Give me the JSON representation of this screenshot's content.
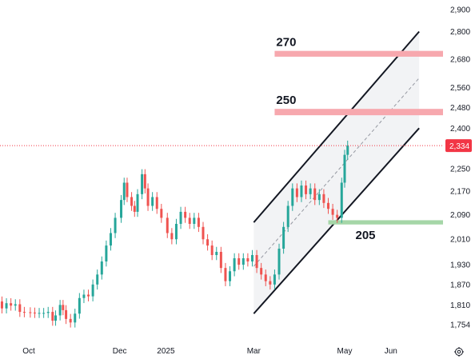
{
  "chart_data": {
    "type": "candlestick",
    "y_scale": "log",
    "ylim": [
      1700,
      2920
    ],
    "y_ticks": [
      "2,900",
      "2,800",
      "2,680",
      "2,560",
      "2,480",
      "2,400",
      "2,250",
      "2,170",
      "2,090",
      "2,010",
      "1,930",
      "1,870",
      "1,810",
      "1,754"
    ],
    "x_ticks": [
      "Oct",
      "Dec",
      "2025",
      "Mar",
      "May",
      "Jun"
    ],
    "current_price": "2,334",
    "colors": {
      "up": "#26a69a",
      "down": "#ef5350",
      "current_line": "#f23645",
      "resistance_zone": "#f7a8ae",
      "support_zone": "#a5d6a7",
      "channel": "#131722",
      "channel_fill": "#f2f3f5",
      "axis_text": "#131722",
      "current_label_bg": "#f23645"
    },
    "channel": {
      "lower": [
        [
          "2025-03-01",
          1785
        ],
        [
          "2025-06-20",
          2400
        ]
      ],
      "upper": [
        [
          "2025-03-01",
          2065
        ],
        [
          "2025-06-20",
          2800
        ]
      ],
      "middle": [
        [
          "2025-03-01",
          1925
        ],
        [
          "2025-06-20",
          2600
        ]
      ]
    },
    "zones": [
      {
        "label": "270",
        "kind": "resistance",
        "from": "2025-03-15",
        "low": 2690,
        "high": 2715
      },
      {
        "label": "250",
        "kind": "resistance",
        "from": "2025-03-15",
        "low": 2450,
        "high": 2475
      },
      {
        "label": "205",
        "kind": "support",
        "from": "2025-04-20",
        "low": 2058,
        "high": 2072
      }
    ],
    "candles": [
      {
        "t": "2024-09-10",
        "c": 1820
      },
      {
        "t": "2024-09-13",
        "c": 1800
      },
      {
        "t": "2024-09-16",
        "c": 1815
      },
      {
        "t": "2024-09-19",
        "c": 1808
      },
      {
        "t": "2024-09-22",
        "c": 1812
      },
      {
        "t": "2024-09-25",
        "c": 1790
      },
      {
        "t": "2024-09-28",
        "c": 1789
      },
      {
        "t": "2024-10-02",
        "c": 1788
      },
      {
        "t": "2024-10-05",
        "c": 1787
      },
      {
        "t": "2024-10-08",
        "c": 1787
      },
      {
        "t": "2024-10-11",
        "c": 1787
      },
      {
        "t": "2024-10-14",
        "c": 1790
      },
      {
        "t": "2024-10-17",
        "c": 1765
      },
      {
        "t": "2024-10-19",
        "c": 1780
      },
      {
        "t": "2024-10-22",
        "c": 1810
      },
      {
        "t": "2024-10-24",
        "c": 1795
      },
      {
        "t": "2024-10-26",
        "c": 1770
      },
      {
        "t": "2024-10-29",
        "c": 1760
      },
      {
        "t": "2024-11-01",
        "c": 1785
      },
      {
        "t": "2024-11-04",
        "c": 1830
      },
      {
        "t": "2024-11-07",
        "c": 1840
      },
      {
        "t": "2024-11-10",
        "c": 1835
      },
      {
        "t": "2024-11-13",
        "c": 1870
      },
      {
        "t": "2024-11-16",
        "c": 1900
      },
      {
        "t": "2024-11-19",
        "c": 1940
      },
      {
        "t": "2024-11-22",
        "c": 1990
      },
      {
        "t": "2024-11-25",
        "c": 2030
      },
      {
        "t": "2024-11-28",
        "c": 2080
      },
      {
        "t": "2024-12-02",
        "c": 2140
      },
      {
        "t": "2024-12-04",
        "c": 2200
      },
      {
        "t": "2024-12-06",
        "c": 2150
      },
      {
        "t": "2024-12-09",
        "c": 2120
      },
      {
        "t": "2024-12-11",
        "c": 2100
      },
      {
        "t": "2024-12-13",
        "c": 2160
      },
      {
        "t": "2024-12-16",
        "c": 2230
      },
      {
        "t": "2024-12-18",
        "c": 2180
      },
      {
        "t": "2024-12-20",
        "c": 2120
      },
      {
        "t": "2024-12-23",
        "c": 2150
      },
      {
        "t": "2024-12-26",
        "c": 2110
      },
      {
        "t": "2024-12-29",
        "c": 2080
      },
      {
        "t": "2025-01-02",
        "c": 2030
      },
      {
        "t": "2025-01-05",
        "c": 2010
      },
      {
        "t": "2025-01-08",
        "c": 2060
      },
      {
        "t": "2025-01-11",
        "c": 2100
      },
      {
        "t": "2025-01-14",
        "c": 2080
      },
      {
        "t": "2025-01-17",
        "c": 2060
      },
      {
        "t": "2025-01-20",
        "c": 2080
      },
      {
        "t": "2025-01-23",
        "c": 2050
      },
      {
        "t": "2025-01-26",
        "c": 2010
      },
      {
        "t": "2025-01-29",
        "c": 1990
      },
      {
        "t": "2025-02-01",
        "c": 1960
      },
      {
        "t": "2025-02-04",
        "c": 1970
      },
      {
        "t": "2025-02-07",
        "c": 1920
      },
      {
        "t": "2025-02-10",
        "c": 1880
      },
      {
        "t": "2025-02-13",
        "c": 1910
      },
      {
        "t": "2025-02-16",
        "c": 1950
      },
      {
        "t": "2025-02-19",
        "c": 1930
      },
      {
        "t": "2025-02-22",
        "c": 1950
      },
      {
        "t": "2025-02-25",
        "c": 1940
      },
      {
        "t": "2025-02-28",
        "c": 1960
      },
      {
        "t": "2025-03-03",
        "c": 1920
      },
      {
        "t": "2025-03-06",
        "c": 1900
      },
      {
        "t": "2025-03-09",
        "c": 1880
      },
      {
        "t": "2025-03-12",
        "c": 1870
      },
      {
        "t": "2025-03-15",
        "c": 1900
      },
      {
        "t": "2025-03-18",
        "c": 1980
      },
      {
        "t": "2025-03-21",
        "c": 2050
      },
      {
        "t": "2025-03-24",
        "c": 2120
      },
      {
        "t": "2025-03-27",
        "c": 2180
      },
      {
        "t": "2025-03-30",
        "c": 2150
      },
      {
        "t": "2025-04-02",
        "c": 2190
      },
      {
        "t": "2025-04-05",
        "c": 2160
      },
      {
        "t": "2025-04-08",
        "c": 2180
      },
      {
        "t": "2025-04-11",
        "c": 2140
      },
      {
        "t": "2025-04-14",
        "c": 2160
      },
      {
        "t": "2025-04-17",
        "c": 2130
      },
      {
        "t": "2025-04-20",
        "c": 2110
      },
      {
        "t": "2025-04-23",
        "c": 2090
      },
      {
        "t": "2025-04-26",
        "c": 2080
      },
      {
        "t": "2025-04-29",
        "c": 2200
      },
      {
        "t": "2025-05-01",
        "c": 2300
      },
      {
        "t": "2025-05-03",
        "c": 2334
      }
    ]
  }
}
